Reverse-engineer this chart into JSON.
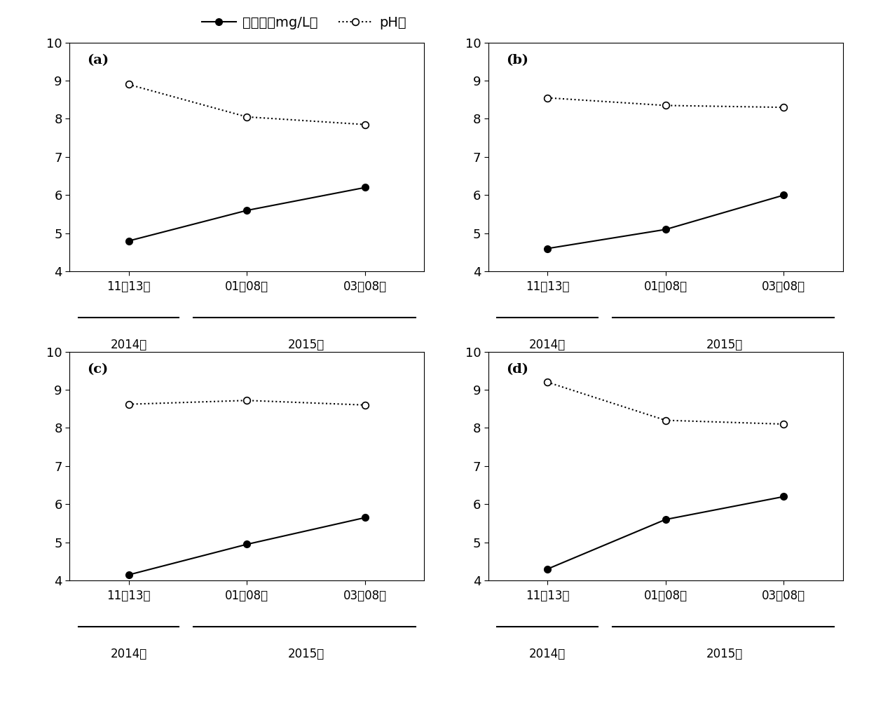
{
  "subplots": [
    {
      "label": "(a)",
      "do_solid": [
        4.8,
        5.6,
        6.2
      ],
      "do_dotted": [
        8.9,
        8.05,
        7.85
      ]
    },
    {
      "label": "(b)",
      "do_solid": [
        4.6,
        5.1,
        6.0
      ],
      "do_dotted": [
        8.55,
        8.35,
        8.3
      ]
    },
    {
      "label": "(c)",
      "do_solid": [
        4.15,
        4.95,
        5.65
      ],
      "do_dotted": [
        8.62,
        8.72,
        8.6
      ]
    },
    {
      "label": "(d)",
      "do_solid": [
        4.3,
        5.6,
        6.2
      ],
      "do_dotted": [
        9.2,
        8.2,
        8.1
      ]
    }
  ],
  "x_positions": [
    0,
    1,
    2
  ],
  "x_tick_labels": [
    "11月13日",
    "01月08日",
    "03月08日"
  ],
  "ylim": [
    4,
    10
  ],
  "yticks": [
    4,
    5,
    6,
    7,
    8,
    9,
    10
  ],
  "legend_solid_label": "溶解氧（mg/L）",
  "legend_dotted_label": "pH値",
  "year_2014_label": "2014年",
  "year_2015_label": "2015年",
  "color": "black",
  "xlim": [
    -0.5,
    2.5
  ]
}
